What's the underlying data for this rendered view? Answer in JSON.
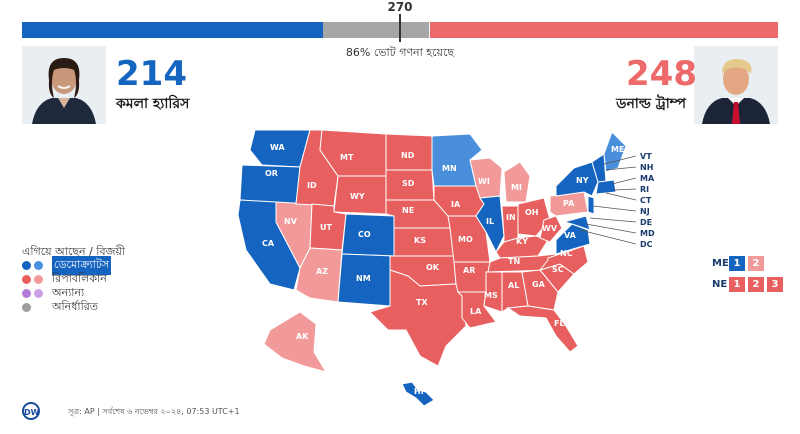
{
  "colors": {
    "dem": "#1565c0",
    "dem_leading": "#4a8fdc",
    "rep": "#e85f5f",
    "rep_leading": "#f29a9a",
    "other": "#b479d9",
    "other_leading": "#c9a0e6",
    "undecided": "#9e9e9e",
    "bar_dem": "#1565c0",
    "bar_rep": "#ee6a6a",
    "bar_gray": "#a6a6a6"
  },
  "results_bar": {
    "threshold_label": "270",
    "dem_votes": 214,
    "rep_votes": 248,
    "total_votes": 538,
    "counted_text": "86% ভোট গণনা হয়েছে"
  },
  "candidates": {
    "dem": {
      "votes": "214",
      "name": "কমলা হ্যারিস",
      "photo_icon": "harris-portrait"
    },
    "rep": {
      "votes": "248",
      "name": "ডনাল্ড ট্রাম্প",
      "photo_icon": "trump-portrait"
    }
  },
  "legend": {
    "title": "এগিয়ে আছেন / বিজয়ী",
    "items": [
      {
        "label": "ডেমোক্র্যাটস",
        "key": "dem",
        "selected": true
      },
      {
        "label": "রিপাবলিকান",
        "key": "rep",
        "selected": false
      },
      {
        "label": "অন্যান্য",
        "key": "other",
        "selected": false
      },
      {
        "label": "অনির্ধারিত",
        "key": "undecided",
        "selected": false
      }
    ]
  },
  "split_states": [
    {
      "state": "ME",
      "districts": [
        {
          "label": "1",
          "party": "dem"
        },
        {
          "label": "2",
          "party": "rep_leading"
        }
      ]
    },
    {
      "state": "NE",
      "districts": [
        {
          "label": "1",
          "party": "rep"
        },
        {
          "label": "2",
          "party": "rep"
        },
        {
          "label": "3",
          "party": "rep"
        }
      ]
    }
  ],
  "states": {
    "WA": "dem",
    "OR": "dem",
    "CA": "dem",
    "NV": "rep_leading",
    "ID": "rep",
    "MT": "rep",
    "WY": "rep",
    "UT": "rep",
    "AZ": "rep_leading",
    "CO": "dem",
    "NM": "dem",
    "ND": "rep",
    "SD": "rep",
    "NE": "rep",
    "KS": "rep",
    "OK": "rep",
    "TX": "rep",
    "MN": "dem_leading",
    "IA": "rep",
    "MO": "rep",
    "AR": "rep",
    "LA": "rep",
    "WI": "rep_leading",
    "IL": "dem",
    "MI": "rep_leading",
    "IN": "rep",
    "OH": "rep",
    "KY": "rep",
    "TN": "rep",
    "MS": "rep",
    "AL": "rep",
    "GA": "rep",
    "FL": "rep",
    "SC": "rep",
    "NC": "rep",
    "VA": "dem",
    "WV": "rep",
    "PA": "rep_leading",
    "NY": "dem",
    "ME": "dem_leading",
    "AK": "rep_leading",
    "HI": "dem"
  },
  "northeast_labels": [
    "VT",
    "NH",
    "MA",
    "RI",
    "CT",
    "NJ",
    "DE",
    "MD",
    "DC"
  ],
  "footer": {
    "logo": "DW",
    "text": "সূত্র: AP | সর্বশেষ ৬ নভেম্বর ২০২৪, 07:53 UTC+1"
  }
}
